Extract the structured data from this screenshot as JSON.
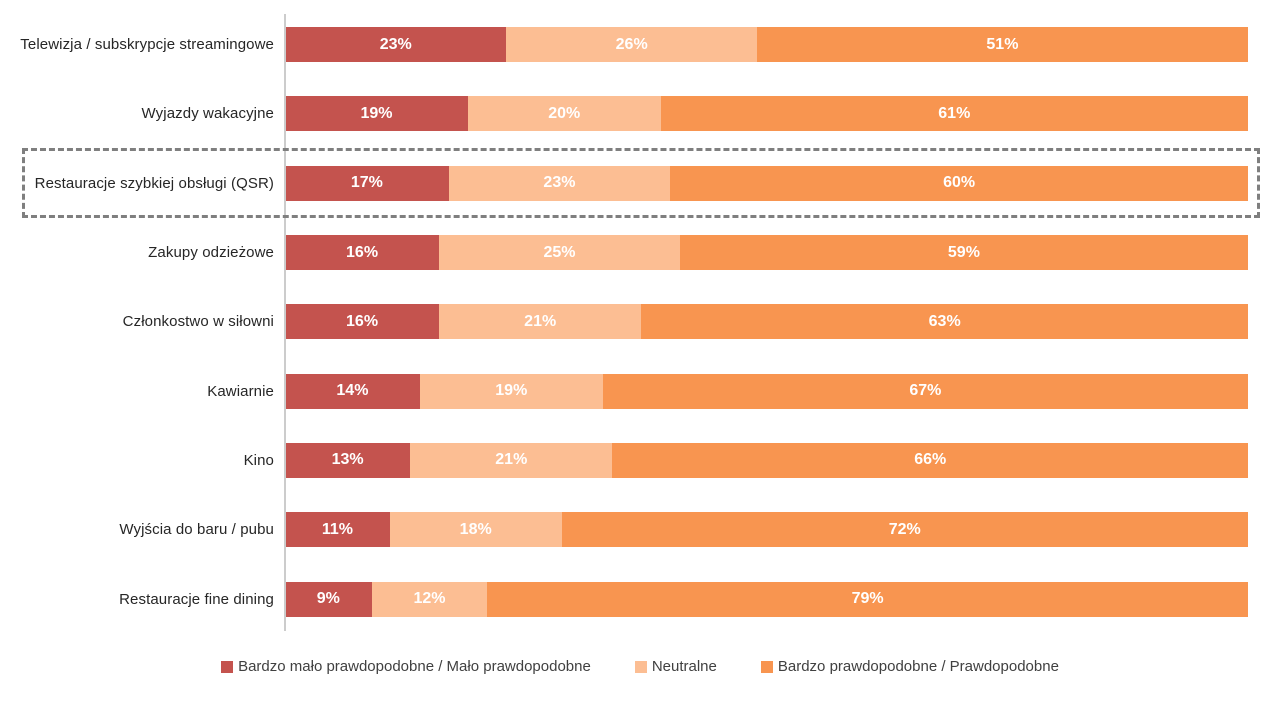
{
  "chart_data": {
    "type": "bar",
    "orientation": "horizontal",
    "stacked": true,
    "title": "",
    "value_suffix": "%",
    "xlim": [
      0,
      100
    ],
    "grid": false,
    "legend_position": "bottom",
    "categories": [
      "Telewizja / subskrypcje streamingowe",
      "Wyjazdy wakacyjne",
      "Restauracje szybkiej obsługi (QSR)",
      "Zakupy odzieżowe",
      "Członkostwo w siłowni",
      "Kawiarnie",
      "Kino",
      "Wyjścia do baru / pubu",
      "Restauracje fine dining"
    ],
    "series": [
      {
        "name": "Bardzo mało prawdopodobne / Mało prawdopodobne",
        "color": "#c4534e",
        "values": [
          23,
          19,
          17,
          16,
          16,
          14,
          13,
          11,
          9
        ]
      },
      {
        "name": "Neutralne",
        "color": "#fcbe93",
        "values": [
          26,
          20,
          23,
          25,
          21,
          19,
          21,
          18,
          12
        ]
      },
      {
        "name": "Bardzo prawdopodobne / Prawdopodobne",
        "color": "#f89550",
        "values": [
          51,
          61,
          60,
          59,
          63,
          67,
          66,
          72,
          79
        ]
      }
    ],
    "highlighted_category": "Restauracje szybkiej obsługi (QSR)",
    "highlighted_index": 2
  },
  "colors": {
    "axis_line": "#cccccc",
    "highlight_border": "#7f7f7f",
    "label_text": "#262626",
    "legend_text": "#404040",
    "segment_text": "#ffffff",
    "background": "#ffffff"
  }
}
